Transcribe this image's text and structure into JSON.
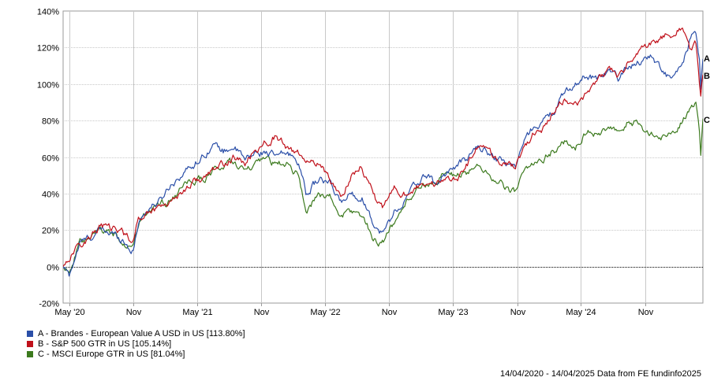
{
  "chart_data": {
    "type": "line",
    "y_tick_labels": [
      "140%",
      "120%",
      "100%",
      "80%",
      "60%",
      "40%",
      "20%",
      "0%",
      "-20%"
    ],
    "y_ticks": [
      140,
      120,
      100,
      80,
      60,
      40,
      20,
      0,
      -20
    ],
    "ylim": [
      -20,
      140
    ],
    "x_tick_labels": [
      "May '20",
      "Nov",
      "May '21",
      "Nov",
      "May '22",
      "Nov",
      "May '23",
      "Nov",
      "May '24",
      "Nov"
    ],
    "x_ticks": [
      "2020-05-01",
      "2020-11-01",
      "2021-05-01",
      "2021-11-01",
      "2022-05-01",
      "2022-11-01",
      "2023-05-01",
      "2023-11-01",
      "2024-05-01",
      "2024-11-01"
    ],
    "xlim": [
      "2020-04-14",
      "2025-04-14"
    ],
    "grid": true,
    "series": [
      {
        "name": "A - Brandes - European Value A USD in US [113.80%]",
        "end_label": "A",
        "color": "#2b4fa8",
        "points": [
          [
            "2020-04-14",
            0
          ],
          [
            "2020-05-01",
            -5
          ],
          [
            "2020-06-01",
            13
          ],
          [
            "2020-07-01",
            16
          ],
          [
            "2020-08-01",
            20
          ],
          [
            "2020-09-01",
            18
          ],
          [
            "2020-10-01",
            15
          ],
          [
            "2020-10-31",
            8
          ],
          [
            "2020-11-15",
            25
          ],
          [
            "2020-12-15",
            32
          ],
          [
            "2021-01-15",
            36
          ],
          [
            "2021-02-15",
            45
          ],
          [
            "2021-03-15",
            50
          ],
          [
            "2021-04-15",
            55
          ],
          [
            "2021-05-15",
            60
          ],
          [
            "2021-06-15",
            67
          ],
          [
            "2021-07-15",
            63
          ],
          [
            "2021-08-15",
            66
          ],
          [
            "2021-09-15",
            58
          ],
          [
            "2021-10-15",
            62
          ],
          [
            "2021-11-15",
            63
          ],
          [
            "2021-12-15",
            60
          ],
          [
            "2022-01-15",
            62
          ],
          [
            "2022-02-15",
            58
          ],
          [
            "2022-03-08",
            40
          ],
          [
            "2022-04-15",
            48
          ],
          [
            "2022-05-15",
            45
          ],
          [
            "2022-06-15",
            35
          ],
          [
            "2022-07-15",
            40
          ],
          [
            "2022-08-15",
            38
          ],
          [
            "2022-09-28",
            20
          ],
          [
            "2022-10-15",
            18
          ],
          [
            "2022-11-15",
            30
          ],
          [
            "2022-12-15",
            36
          ],
          [
            "2023-01-15",
            45
          ],
          [
            "2023-02-15",
            50
          ],
          [
            "2023-03-15",
            45
          ],
          [
            "2023-04-15",
            52
          ],
          [
            "2023-05-15",
            55
          ],
          [
            "2023-06-15",
            60
          ],
          [
            "2023-07-15",
            66
          ],
          [
            "2023-08-15",
            62
          ],
          [
            "2023-09-15",
            58
          ],
          [
            "2023-10-27",
            55
          ],
          [
            "2023-11-15",
            66
          ],
          [
            "2023-12-15",
            76
          ],
          [
            "2024-01-15",
            80
          ],
          [
            "2024-02-15",
            85
          ],
          [
            "2024-03-15",
            95
          ],
          [
            "2024-04-15",
            100
          ],
          [
            "2024-05-15",
            105
          ],
          [
            "2024-06-15",
            103
          ],
          [
            "2024-07-15",
            108
          ],
          [
            "2024-08-15",
            103
          ],
          [
            "2024-09-15",
            110
          ],
          [
            "2024-10-15",
            112
          ],
          [
            "2024-11-15",
            116
          ],
          [
            "2024-12-15",
            108
          ],
          [
            "2025-01-15",
            102
          ],
          [
            "2025-02-15",
            110
          ],
          [
            "2025-03-10",
            125
          ],
          [
            "2025-03-25",
            128
          ],
          [
            "2025-04-04",
            112
          ],
          [
            "2025-04-08",
            95
          ],
          [
            "2025-04-14",
            113.8
          ]
        ]
      },
      {
        "name": "B - S&P 500 GTR in US [105.14%]",
        "end_label": "B",
        "color": "#c0111b",
        "points": [
          [
            "2020-04-14",
            0
          ],
          [
            "2020-05-01",
            5
          ],
          [
            "2020-06-01",
            12
          ],
          [
            "2020-07-01",
            16
          ],
          [
            "2020-08-01",
            23
          ],
          [
            "2020-09-01",
            20
          ],
          [
            "2020-10-01",
            19
          ],
          [
            "2020-10-31",
            14
          ],
          [
            "2020-11-15",
            26
          ],
          [
            "2020-12-15",
            30
          ],
          [
            "2021-01-15",
            33
          ],
          [
            "2021-02-15",
            36
          ],
          [
            "2021-03-15",
            40
          ],
          [
            "2021-04-15",
            46
          ],
          [
            "2021-05-15",
            48
          ],
          [
            "2021-06-15",
            52
          ],
          [
            "2021-07-15",
            56
          ],
          [
            "2021-08-15",
            60
          ],
          [
            "2021-09-15",
            56
          ],
          [
            "2021-10-15",
            64
          ],
          [
            "2021-11-15",
            68
          ],
          [
            "2021-12-15",
            72
          ],
          [
            "2022-01-15",
            64
          ],
          [
            "2022-02-15",
            62
          ],
          [
            "2022-03-08",
            55
          ],
          [
            "2022-04-15",
            58
          ],
          [
            "2022-05-15",
            48
          ],
          [
            "2022-06-15",
            38
          ],
          [
            "2022-07-15",
            50
          ],
          [
            "2022-08-15",
            55
          ],
          [
            "2022-09-28",
            35
          ],
          [
            "2022-10-15",
            32
          ],
          [
            "2022-11-15",
            42
          ],
          [
            "2022-12-15",
            40
          ],
          [
            "2023-01-15",
            44
          ],
          [
            "2023-02-15",
            42
          ],
          [
            "2023-03-15",
            46
          ],
          [
            "2023-04-15",
            48
          ],
          [
            "2023-05-15",
            50
          ],
          [
            "2023-06-15",
            57
          ],
          [
            "2023-07-15",
            66
          ],
          [
            "2023-08-15",
            62
          ],
          [
            "2023-09-15",
            58
          ],
          [
            "2023-10-27",
            54
          ],
          [
            "2023-11-15",
            63
          ],
          [
            "2023-12-15",
            72
          ],
          [
            "2024-01-15",
            76
          ],
          [
            "2024-02-15",
            85
          ],
          [
            "2024-03-15",
            92
          ],
          [
            "2024-04-15",
            88
          ],
          [
            "2024-05-15",
            95
          ],
          [
            "2024-06-15",
            102
          ],
          [
            "2024-07-15",
            108
          ],
          [
            "2024-08-15",
            104
          ],
          [
            "2024-09-15",
            112
          ],
          [
            "2024-10-15",
            118
          ],
          [
            "2024-11-15",
            122
          ],
          [
            "2024-12-15",
            126
          ],
          [
            "2025-01-15",
            128
          ],
          [
            "2025-02-15",
            131
          ],
          [
            "2025-03-10",
            118
          ],
          [
            "2025-03-25",
            122
          ],
          [
            "2025-04-04",
            100
          ],
          [
            "2025-04-08",
            92
          ],
          [
            "2025-04-14",
            105.14
          ]
        ]
      },
      {
        "name": "C - MSCI Europe GTR in US [81.04%]",
        "end_label": "C",
        "color": "#3c7a1e",
        "points": [
          [
            "2020-04-14",
            0
          ],
          [
            "2020-05-01",
            -2
          ],
          [
            "2020-06-01",
            12
          ],
          [
            "2020-07-01",
            15
          ],
          [
            "2020-08-01",
            20
          ],
          [
            "2020-09-01",
            18
          ],
          [
            "2020-10-01",
            14
          ],
          [
            "2020-10-31",
            10
          ],
          [
            "2020-11-15",
            24
          ],
          [
            "2020-12-15",
            30
          ],
          [
            "2021-01-15",
            34
          ],
          [
            "2021-02-15",
            36
          ],
          [
            "2021-03-15",
            42
          ],
          [
            "2021-04-15",
            46
          ],
          [
            "2021-05-15",
            48
          ],
          [
            "2021-06-15",
            52
          ],
          [
            "2021-07-15",
            55
          ],
          [
            "2021-08-15",
            58
          ],
          [
            "2021-09-15",
            52
          ],
          [
            "2021-10-15",
            55
          ],
          [
            "2021-11-15",
            58
          ],
          [
            "2021-12-15",
            56
          ],
          [
            "2022-01-15",
            56
          ],
          [
            "2022-02-15",
            50
          ],
          [
            "2022-03-08",
            30
          ],
          [
            "2022-04-15",
            40
          ],
          [
            "2022-05-15",
            38
          ],
          [
            "2022-06-15",
            28
          ],
          [
            "2022-07-15",
            30
          ],
          [
            "2022-08-15",
            28
          ],
          [
            "2022-09-28",
            12
          ],
          [
            "2022-10-15",
            15
          ],
          [
            "2022-11-15",
            24
          ],
          [
            "2022-12-15",
            34
          ],
          [
            "2023-01-15",
            42
          ],
          [
            "2023-02-15",
            46
          ],
          [
            "2023-03-15",
            44
          ],
          [
            "2023-04-15",
            52
          ],
          [
            "2023-05-15",
            50
          ],
          [
            "2023-06-15",
            52
          ],
          [
            "2023-07-15",
            56
          ],
          [
            "2023-08-15",
            50
          ],
          [
            "2023-09-15",
            45
          ],
          [
            "2023-10-27",
            40
          ],
          [
            "2023-11-15",
            50
          ],
          [
            "2023-12-15",
            56
          ],
          [
            "2024-01-15",
            60
          ],
          [
            "2024-02-15",
            64
          ],
          [
            "2024-03-15",
            68
          ],
          [
            "2024-04-15",
            66
          ],
          [
            "2024-05-15",
            74
          ],
          [
            "2024-06-15",
            72
          ],
          [
            "2024-07-15",
            76
          ],
          [
            "2024-08-15",
            72
          ],
          [
            "2024-09-15",
            80
          ],
          [
            "2024-10-15",
            78
          ],
          [
            "2024-11-15",
            72
          ],
          [
            "2024-12-15",
            70
          ],
          [
            "2025-01-15",
            74
          ],
          [
            "2025-02-15",
            80
          ],
          [
            "2025-03-10",
            88
          ],
          [
            "2025-03-25",
            90
          ],
          [
            "2025-04-04",
            74
          ],
          [
            "2025-04-08",
            62
          ],
          [
            "2025-04-14",
            81.04
          ]
        ]
      }
    ],
    "zero_line": true
  },
  "footer": {
    "text": "14/04/2020 - 14/04/2025 Data from FE fundinfo2025"
  }
}
